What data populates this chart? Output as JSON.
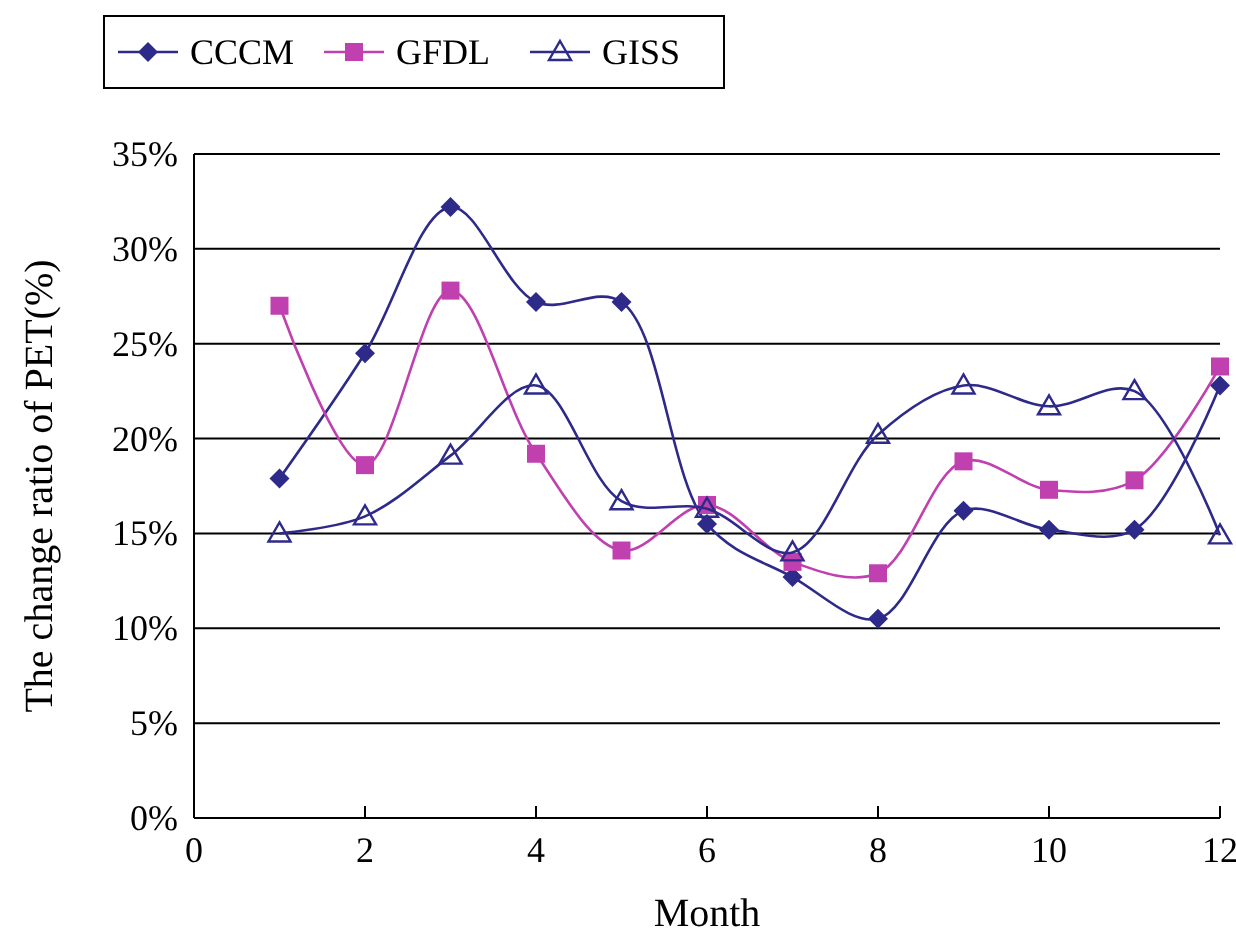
{
  "chart_data": {
    "type": "line",
    "xlabel": "Month",
    "ylabel": "The change ratio of PET(%)",
    "xlim": [
      0,
      12
    ],
    "xticks": [
      0,
      2,
      4,
      6,
      8,
      10,
      12
    ],
    "ylim": [
      0,
      35
    ],
    "yticks": [
      {
        "value": 0,
        "label": "0%"
      },
      {
        "value": 5,
        "label": "5%"
      },
      {
        "value": 10,
        "label": "10%"
      },
      {
        "value": 15,
        "label": "15%"
      },
      {
        "value": 20,
        "label": "20%"
      },
      {
        "value": 25,
        "label": "25%"
      },
      {
        "value": 30,
        "label": "30%"
      },
      {
        "value": 35,
        "label": "35%"
      }
    ],
    "grid": "y",
    "legend": "top",
    "x": [
      1,
      2,
      3,
      4,
      5,
      6,
      7,
      8,
      9,
      10,
      11,
      12
    ],
    "series": [
      {
        "name": "CCCM",
        "color": "#2e2a8a",
        "marker": "diamond",
        "values": [
          17.9,
          24.5,
          32.2,
          27.2,
          27.2,
          15.5,
          12.7,
          10.5,
          16.2,
          15.2,
          15.2,
          22.8
        ]
      },
      {
        "name": "GFDL",
        "color": "#c040b0",
        "marker": "square",
        "values": [
          27.0,
          18.6,
          27.8,
          19.2,
          14.1,
          16.5,
          13.5,
          12.9,
          18.8,
          17.3,
          17.8,
          23.8
        ]
      },
      {
        "name": "GISS",
        "color": "#2e2a8a",
        "marker": "triangle",
        "values": [
          15.0,
          15.9,
          19.1,
          22.8,
          16.7,
          16.3,
          14.0,
          20.2,
          22.8,
          21.7,
          22.5,
          14.9
        ]
      }
    ]
  }
}
